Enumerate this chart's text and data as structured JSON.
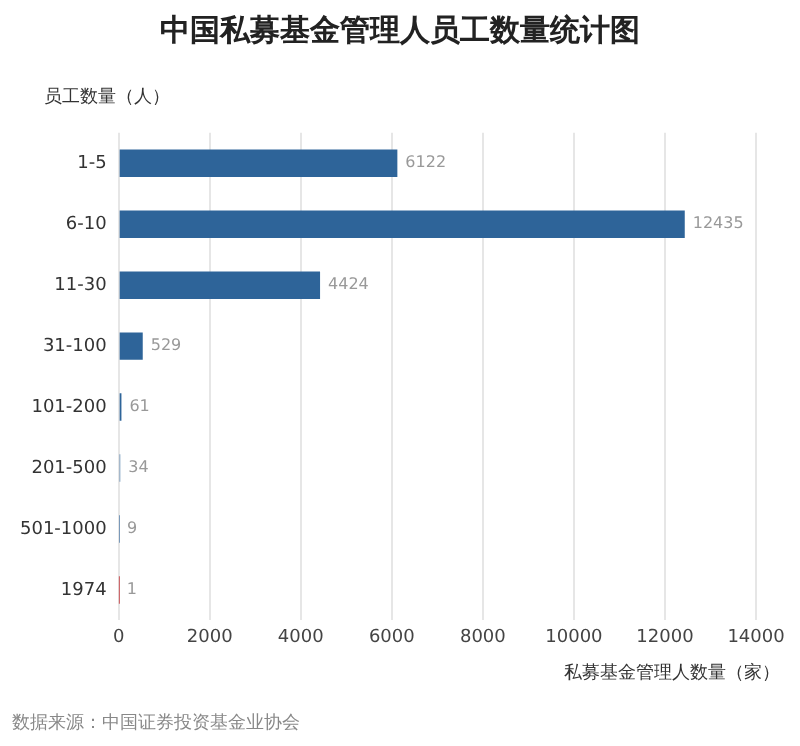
{
  "chart_data": {
    "type": "bar",
    "orientation": "horizontal",
    "title": "中国私募基金管理人员工数量统计图",
    "ylabel": "员工数量（人）",
    "xlabel": "私募基金管理人数量（家）",
    "categories": [
      "1-5",
      "6-10",
      "11-30",
      "31-100",
      "101-200",
      "201-500",
      "501-1000",
      "1974"
    ],
    "values": [
      6122,
      12435,
      4424,
      529,
      61,
      34,
      9,
      1
    ],
    "colors": [
      "#2e6499",
      "#2e6499",
      "#2e6499",
      "#2e6499",
      "#2e6499",
      "#2e6499",
      "#2e6499",
      "#c0282d"
    ],
    "xlim": [
      0,
      14000
    ],
    "xticks": [
      0,
      2000,
      4000,
      6000,
      8000,
      10000,
      12000,
      14000
    ],
    "grid": "x",
    "legend": false,
    "data_labels": true,
    "annotations": [
      "数据来源：中国证券投资基金业协会"
    ]
  }
}
